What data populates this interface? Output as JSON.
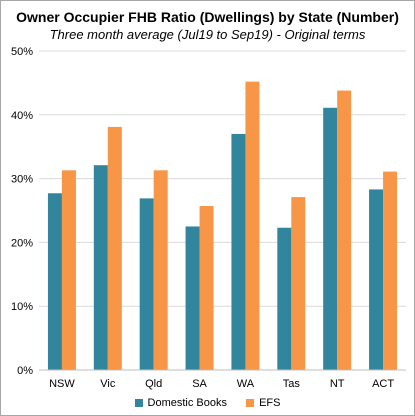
{
  "chart_data": {
    "type": "bar",
    "title": "Owner Occupier FHB Ratio (Dwellings)  by State (Number)",
    "subtitle": "Three month average (Jul19 to Sep19) - Original terms",
    "categories": [
      "NSW",
      "Vic",
      "Qld",
      "SA",
      "WA",
      "Tas",
      "NT",
      "ACT"
    ],
    "series": [
      {
        "name": "Domestic Books",
        "color": "#31859c",
        "values": [
          27.7,
          32.1,
          26.9,
          22.5,
          37.0,
          22.3,
          41.1,
          28.3
        ]
      },
      {
        "name": "EFS",
        "color": "#f79646",
        "values": [
          31.3,
          38.1,
          31.3,
          25.7,
          45.2,
          27.1,
          43.8,
          31.1
        ]
      }
    ],
    "ylim": [
      0,
      50
    ],
    "yticks": [
      0,
      10,
      20,
      30,
      40,
      50
    ],
    "ytick_labels": [
      "0%",
      "10%",
      "20%",
      "30%",
      "40%",
      "50%"
    ],
    "grid": true,
    "gridline_color": "#d9d9d9",
    "legend_position": "bottom"
  }
}
